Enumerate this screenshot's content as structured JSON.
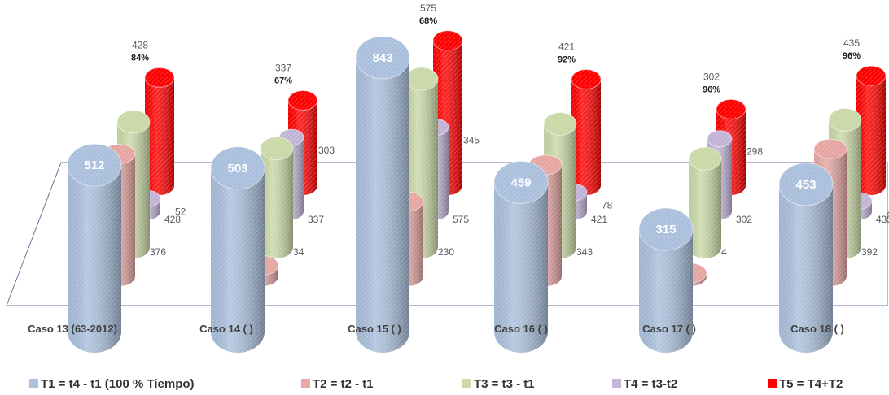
{
  "chart_data": {
    "type": "bar",
    "style": "3d-cylinder",
    "categories": [
      "Caso 13 (63-2012)",
      "Caso 14 (     )",
      "Caso 15 (     )",
      "Caso 16 (     )",
      "Caso 17 (     )",
      "Caso 18 (     )"
    ],
    "series": [
      {
        "name": "T1 = t4 - t1 (100 % Tiempo)",
        "values": [
          512,
          503,
          843,
          459,
          315,
          453
        ],
        "color": "#a9bfdc"
      },
      {
        "name": "T2 = t2 - t1",
        "values": [
          376,
          34,
          230,
          343,
          4,
          392
        ],
        "color": "#e5a6a2"
      },
      {
        "name": "T3 = t3 - t1",
        "values": [
          428,
          337,
          575,
          421,
          302,
          435
        ],
        "color": "#c9d8a6"
      },
      {
        "name": "T4 = t3-t2",
        "values": [
          52,
          303,
          345,
          78,
          298,
          43
        ],
        "color": "#c2b3d6"
      },
      {
        "name": "T5 = T4+T2",
        "values": [
          428,
          337,
          575,
          421,
          302,
          435
        ],
        "color": "#ff0000"
      }
    ],
    "percent_labels": [
      "84%",
      "67%",
      "68%",
      "92%",
      "96%",
      "96%"
    ],
    "legend_position": "bottom",
    "grid": false
  }
}
